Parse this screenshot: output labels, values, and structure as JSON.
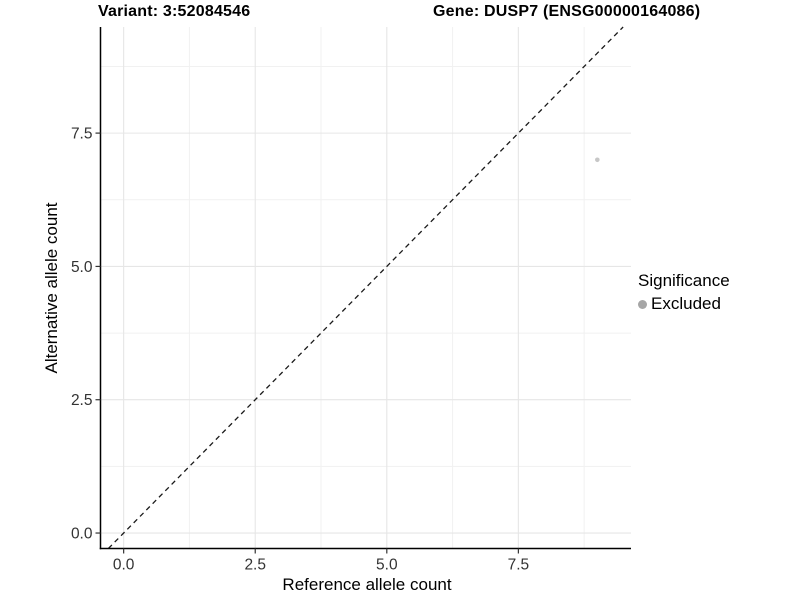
{
  "chart_data": {
    "type": "scatter",
    "title_left": "Variant: 3:52084546",
    "title_right": "Gene: DUSP7 (ENSG00000164086)",
    "xlabel": "Reference allele count",
    "ylabel": "Alternative allele count",
    "xlim": [
      -0.44,
      9.64
    ],
    "ylim": [
      -0.29,
      9.49
    ],
    "xticks": [
      0.0,
      2.5,
      5.0,
      7.5
    ],
    "yticks": [
      0.0,
      2.5,
      5.0,
      7.5
    ],
    "xtick_labels": [
      "0.0",
      "2.5",
      "5.0",
      "7.5"
    ],
    "ytick_labels": [
      "0.0",
      "2.5",
      "5.0",
      "7.5"
    ],
    "xticks_minor": [
      1.25,
      3.75,
      6.25,
      8.75
    ],
    "yticks_minor": [
      1.25,
      3.75,
      6.25,
      8.75
    ],
    "grid": true,
    "identity_line": {
      "slope": 1,
      "intercept": 0,
      "style": "dashed",
      "color": "#1a1a1a"
    },
    "series": [
      {
        "name": "Excluded",
        "color": "#c7c7c7",
        "point_radius": 2.3,
        "points": [
          {
            "x": 9,
            "y": 7
          }
        ]
      }
    ],
    "legend": {
      "position": "right",
      "title": "Significance",
      "entries": [
        {
          "label": "Excluded",
          "color": "#a6a6a6"
        }
      ]
    },
    "colors": {
      "axis_line": "#000000",
      "tick_mark": "#333333",
      "tick_label": "#333333",
      "grid_major": "#e6e6e6",
      "grid_minor": "#f1f1f1",
      "background": "#ffffff"
    }
  }
}
